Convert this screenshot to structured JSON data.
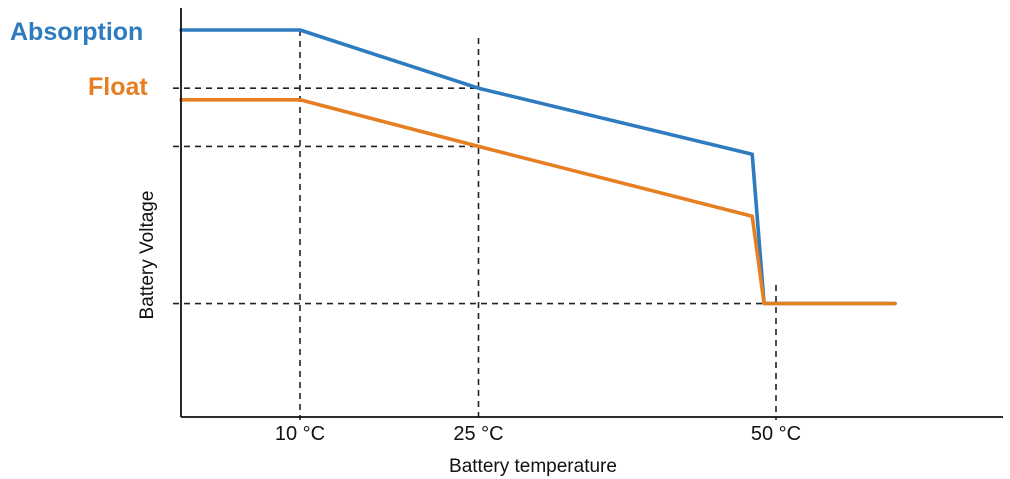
{
  "chart_data": {
    "type": "line",
    "xlabel": "Battery temperature",
    "ylabel": "Battery Voltage",
    "x_ticks": [
      {
        "value": 10,
        "label": "10 °C"
      },
      {
        "value": 25,
        "label": "25 °C"
      },
      {
        "value": 50,
        "label": "50 °C"
      }
    ],
    "xlim": [
      0,
      70
    ],
    "ylim": [
      0,
      100
    ],
    "grid": false,
    "series": [
      {
        "name": "Absorption",
        "color": "#2e7bbf",
        "points": [
          [
            0,
            100
          ],
          [
            10,
            100
          ],
          [
            25,
            85
          ],
          [
            48,
            68
          ],
          [
            49,
            29.5
          ],
          [
            60,
            29.5
          ]
        ]
      },
      {
        "name": "Float",
        "color": "#e67e22",
        "points": [
          [
            0,
            82
          ],
          [
            10,
            82
          ],
          [
            25,
            70
          ],
          [
            48,
            52
          ],
          [
            49,
            29.5
          ],
          [
            60,
            29.5
          ]
        ]
      }
    ],
    "reference_lines": {
      "vertical": [
        10,
        25,
        50
      ],
      "horizontal": [
        85,
        70,
        29.5
      ]
    },
    "axis_color": "#111111",
    "reference_color": "#222222"
  }
}
